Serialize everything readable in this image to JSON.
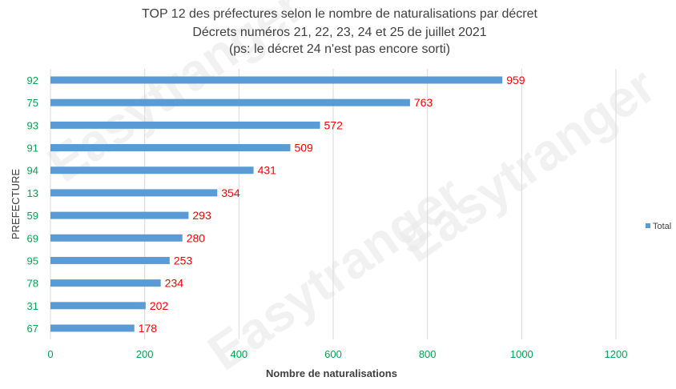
{
  "chart_data": {
    "type": "bar",
    "orientation": "horizontal",
    "title": [
      "TOP 12 des préfectures selon le nombre de naturalisations par décret",
      "Décrets numéros 21, 22, 23, 24 et 25 de juillet 2021",
      "(ps: le décret 24 n'est pas encore sorti)"
    ],
    "categories": [
      "92",
      "75",
      "93",
      "91",
      "94",
      "13",
      "59",
      "69",
      "95",
      "78",
      "31",
      "67"
    ],
    "series": [
      {
        "name": "Total",
        "values": [
          959,
          763,
          572,
          509,
          431,
          354,
          293,
          280,
          253,
          234,
          202,
          178
        ],
        "color": "#5b9bd5"
      }
    ],
    "xlabel": "Nombre de naturalisations",
    "ylabel": "PREFECTURE",
    "xlim": [
      0,
      1200
    ],
    "xticks": [
      0,
      200,
      400,
      600,
      800,
      1000,
      1200
    ],
    "grid": true,
    "legend": "right",
    "watermark": "Easytranger"
  }
}
